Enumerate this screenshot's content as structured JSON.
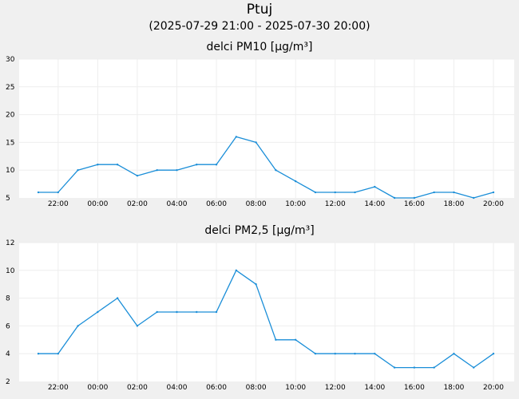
{
  "page": {
    "title": "Ptuj",
    "subtitle": "(2025-07-29 21:00 - 2025-07-30 20:00)"
  },
  "colors": {
    "line": "#1a8ed8",
    "plot_background": "#ffffff",
    "page_background": "#f0f0f0",
    "grid": "#eeeeee"
  },
  "chart_data": [
    {
      "type": "line",
      "title": "delci PM10 [µg/m³]",
      "x": [
        "21:00",
        "22:00",
        "23:00",
        "00:00",
        "01:00",
        "02:00",
        "03:00",
        "04:00",
        "05:00",
        "06:00",
        "07:00",
        "08:00",
        "09:00",
        "10:00",
        "11:00",
        "12:00",
        "13:00",
        "14:00",
        "15:00",
        "16:00",
        "17:00",
        "18:00",
        "19:00",
        "20:00"
      ],
      "x_tick_labels": [
        "22:00",
        "00:00",
        "02:00",
        "04:00",
        "06:00",
        "08:00",
        "10:00",
        "12:00",
        "14:00",
        "16:00",
        "18:00",
        "20:00"
      ],
      "series": [
        {
          "values": [
            6,
            6,
            10,
            11,
            11,
            9,
            10,
            10,
            11,
            11,
            16,
            15,
            10,
            8,
            6,
            6,
            6,
            7,
            5,
            5,
            6,
            6,
            5,
            6
          ]
        }
      ],
      "ylim": [
        5,
        30
      ],
      "y_ticks": [
        5,
        10,
        15,
        20,
        25,
        30
      ],
      "grid": true
    },
    {
      "type": "line",
      "title": "delci PM2,5 [µg/m³]",
      "x": [
        "21:00",
        "22:00",
        "23:00",
        "00:00",
        "01:00",
        "02:00",
        "03:00",
        "04:00",
        "05:00",
        "06:00",
        "07:00",
        "08:00",
        "09:00",
        "10:00",
        "11:00",
        "12:00",
        "13:00",
        "14:00",
        "15:00",
        "16:00",
        "17:00",
        "18:00",
        "19:00",
        "20:00"
      ],
      "x_tick_labels": [
        "22:00",
        "00:00",
        "02:00",
        "04:00",
        "06:00",
        "08:00",
        "10:00",
        "12:00",
        "14:00",
        "16:00",
        "18:00",
        "20:00"
      ],
      "series": [
        {
          "values": [
            4,
            4,
            6,
            7,
            8,
            6,
            7,
            7,
            7,
            7,
            10,
            9,
            5,
            5,
            4,
            4,
            4,
            4,
            3,
            3,
            3,
            4,
            3,
            4
          ]
        }
      ],
      "ylim": [
        2,
        12
      ],
      "y_ticks": [
        2,
        4,
        6,
        8,
        10,
        12
      ],
      "grid": true
    }
  ]
}
